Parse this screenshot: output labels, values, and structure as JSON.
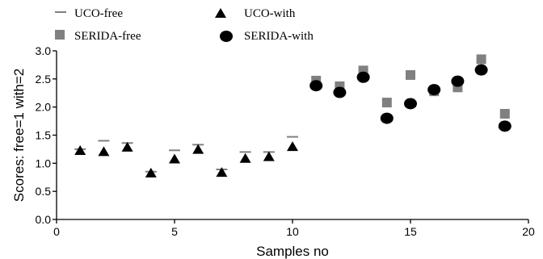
{
  "chart_data": {
    "type": "scatter",
    "xlabel": "Samples no",
    "ylabel": "Scores: free=1 with=2",
    "xlim": [
      0,
      20
    ],
    "ylim": [
      0,
      3.0
    ],
    "x_ticks": [
      "0",
      "5",
      "10",
      "15",
      "20"
    ],
    "y_ticks": [
      "0.0",
      "0.5",
      "1.0",
      "1.5",
      "2.0",
      "2.5",
      "3.0"
    ],
    "grid": false,
    "legend_position": "top",
    "series": [
      {
        "name": "UCO-free",
        "marker": "dash",
        "color": "#808080",
        "points": [
          [
            1,
            1.25
          ],
          [
            2,
            1.4
          ],
          [
            3,
            1.36
          ],
          [
            4,
            0.85
          ],
          [
            5,
            1.23
          ],
          [
            6,
            1.33
          ],
          [
            7,
            0.89
          ],
          [
            8,
            1.2
          ],
          [
            9,
            1.2
          ],
          [
            10,
            1.47
          ]
        ]
      },
      {
        "name": "UCO-with",
        "marker": "triangle",
        "color": "#000000",
        "points": [
          [
            1,
            1.22
          ],
          [
            2,
            1.2
          ],
          [
            3,
            1.28
          ],
          [
            4,
            0.82
          ],
          [
            5,
            1.07
          ],
          [
            6,
            1.24
          ],
          [
            7,
            0.83
          ],
          [
            8,
            1.08
          ],
          [
            9,
            1.11
          ],
          [
            10,
            1.29
          ]
        ]
      },
      {
        "name": "SERIDA-free",
        "marker": "square",
        "color": "#808080",
        "points": [
          [
            11,
            2.47
          ],
          [
            12,
            2.37
          ],
          [
            13,
            2.65
          ],
          [
            14,
            2.08
          ],
          [
            15,
            2.57
          ],
          [
            16,
            2.28
          ],
          [
            17,
            2.35
          ],
          [
            18,
            2.85
          ],
          [
            19,
            1.88
          ]
        ]
      },
      {
        "name": "SERIDA-with",
        "marker": "circle",
        "color": "#000000",
        "points": [
          [
            11,
            2.38
          ],
          [
            12,
            2.26
          ],
          [
            13,
            2.53
          ],
          [
            14,
            1.8
          ],
          [
            15,
            2.06
          ],
          [
            16,
            2.31
          ],
          [
            17,
            2.46
          ],
          [
            18,
            2.66
          ],
          [
            19,
            1.66
          ]
        ]
      }
    ]
  }
}
